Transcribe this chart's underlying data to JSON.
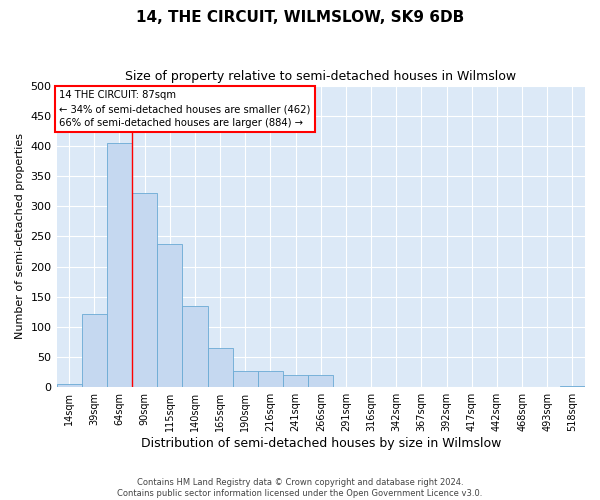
{
  "title": "14, THE CIRCUIT, WILMSLOW, SK9 6DB",
  "subtitle": "Size of property relative to semi-detached houses in Wilmslow",
  "xlabel": "Distribution of semi-detached houses by size in Wilmslow",
  "ylabel": "Number of semi-detached properties",
  "annotation_line1": "14 THE CIRCUIT: 87sqm",
  "annotation_line2": "← 34% of semi-detached houses are smaller (462)",
  "annotation_line3": "66% of semi-detached houses are larger (884) →",
  "footer1": "Contains HM Land Registry data © Crown copyright and database right 2024.",
  "footer2": "Contains public sector information licensed under the Open Government Licence v3.0.",
  "bin_labels": [
    "14sqm",
    "39sqm",
    "64sqm",
    "90sqm",
    "115sqm",
    "140sqm",
    "165sqm",
    "190sqm",
    "216sqm",
    "241sqm",
    "266sqm",
    "291sqm",
    "316sqm",
    "342sqm",
    "367sqm",
    "392sqm",
    "417sqm",
    "442sqm",
    "468sqm",
    "493sqm",
    "518sqm"
  ],
  "bar_values": [
    5,
    122,
    405,
    322,
    237,
    135,
    65,
    27,
    27,
    20,
    20,
    0,
    0,
    0,
    0,
    0,
    0,
    0,
    0,
    0,
    3
  ],
  "bar_color": "#c5d8f0",
  "bar_edge_color": "#6aaad4",
  "red_line_x": 2.5,
  "ylim": [
    0,
    500
  ],
  "yticks": [
    0,
    50,
    100,
    150,
    200,
    250,
    300,
    350,
    400,
    450,
    500
  ],
  "background_color": "#dce9f7",
  "grid_color": "#ffffff",
  "title_fontsize": 11,
  "subtitle_fontsize": 9,
  "ylabel_fontsize": 8,
  "xlabel_fontsize": 9
}
